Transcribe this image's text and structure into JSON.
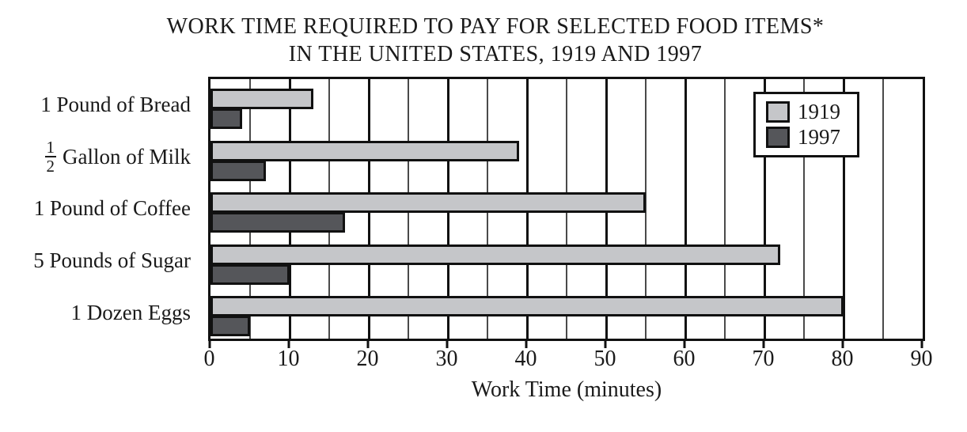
{
  "title": {
    "line1": "WORK TIME REQUIRED TO PAY FOR SELECTED FOOD ITEMS*",
    "line2": "IN THE UNITED STATES, 1919 AND 1997"
  },
  "chart_data": {
    "type": "bar",
    "orientation": "horizontal",
    "title": "WORK TIME REQUIRED TO PAY FOR SELECTED FOOD ITEMS* IN THE UNITED STATES, 1919 AND 1997",
    "categories": [
      "1 Pound of Bread",
      "1/2 Gallon of Milk",
      "1 Pound of Coffee",
      "5 Pounds of Sugar",
      "1 Dozen Eggs"
    ],
    "category_labels": [
      {
        "text": "1 Pound of Bread"
      },
      {
        "fraction": {
          "numerator": "1",
          "denominator": "2"
        },
        "text": "Gallon of Milk"
      },
      {
        "text": "1 Pound of Coffee"
      },
      {
        "text": "5 Pounds of Sugar"
      },
      {
        "text": "1 Dozen Eggs"
      }
    ],
    "series": [
      {
        "name": "1919",
        "color": "#c5c6c9",
        "values": [
          13,
          39,
          55,
          72,
          80
        ]
      },
      {
        "name": "1997",
        "color": "#55565a",
        "values": [
          4,
          7,
          17,
          10,
          5
        ]
      }
    ],
    "xlabel": "Work Time (minutes)",
    "ylabel": "",
    "xlim": [
      0,
      90
    ],
    "x_major_ticks": [
      0,
      10,
      20,
      30,
      40,
      50,
      60,
      70,
      80,
      90
    ],
    "x_minor_step": 5,
    "grid": true,
    "legend_position": "top-right",
    "bar_border_color": "#111111",
    "major_grid_color": "#111111",
    "minor_grid_color": "#4a4a4a"
  }
}
